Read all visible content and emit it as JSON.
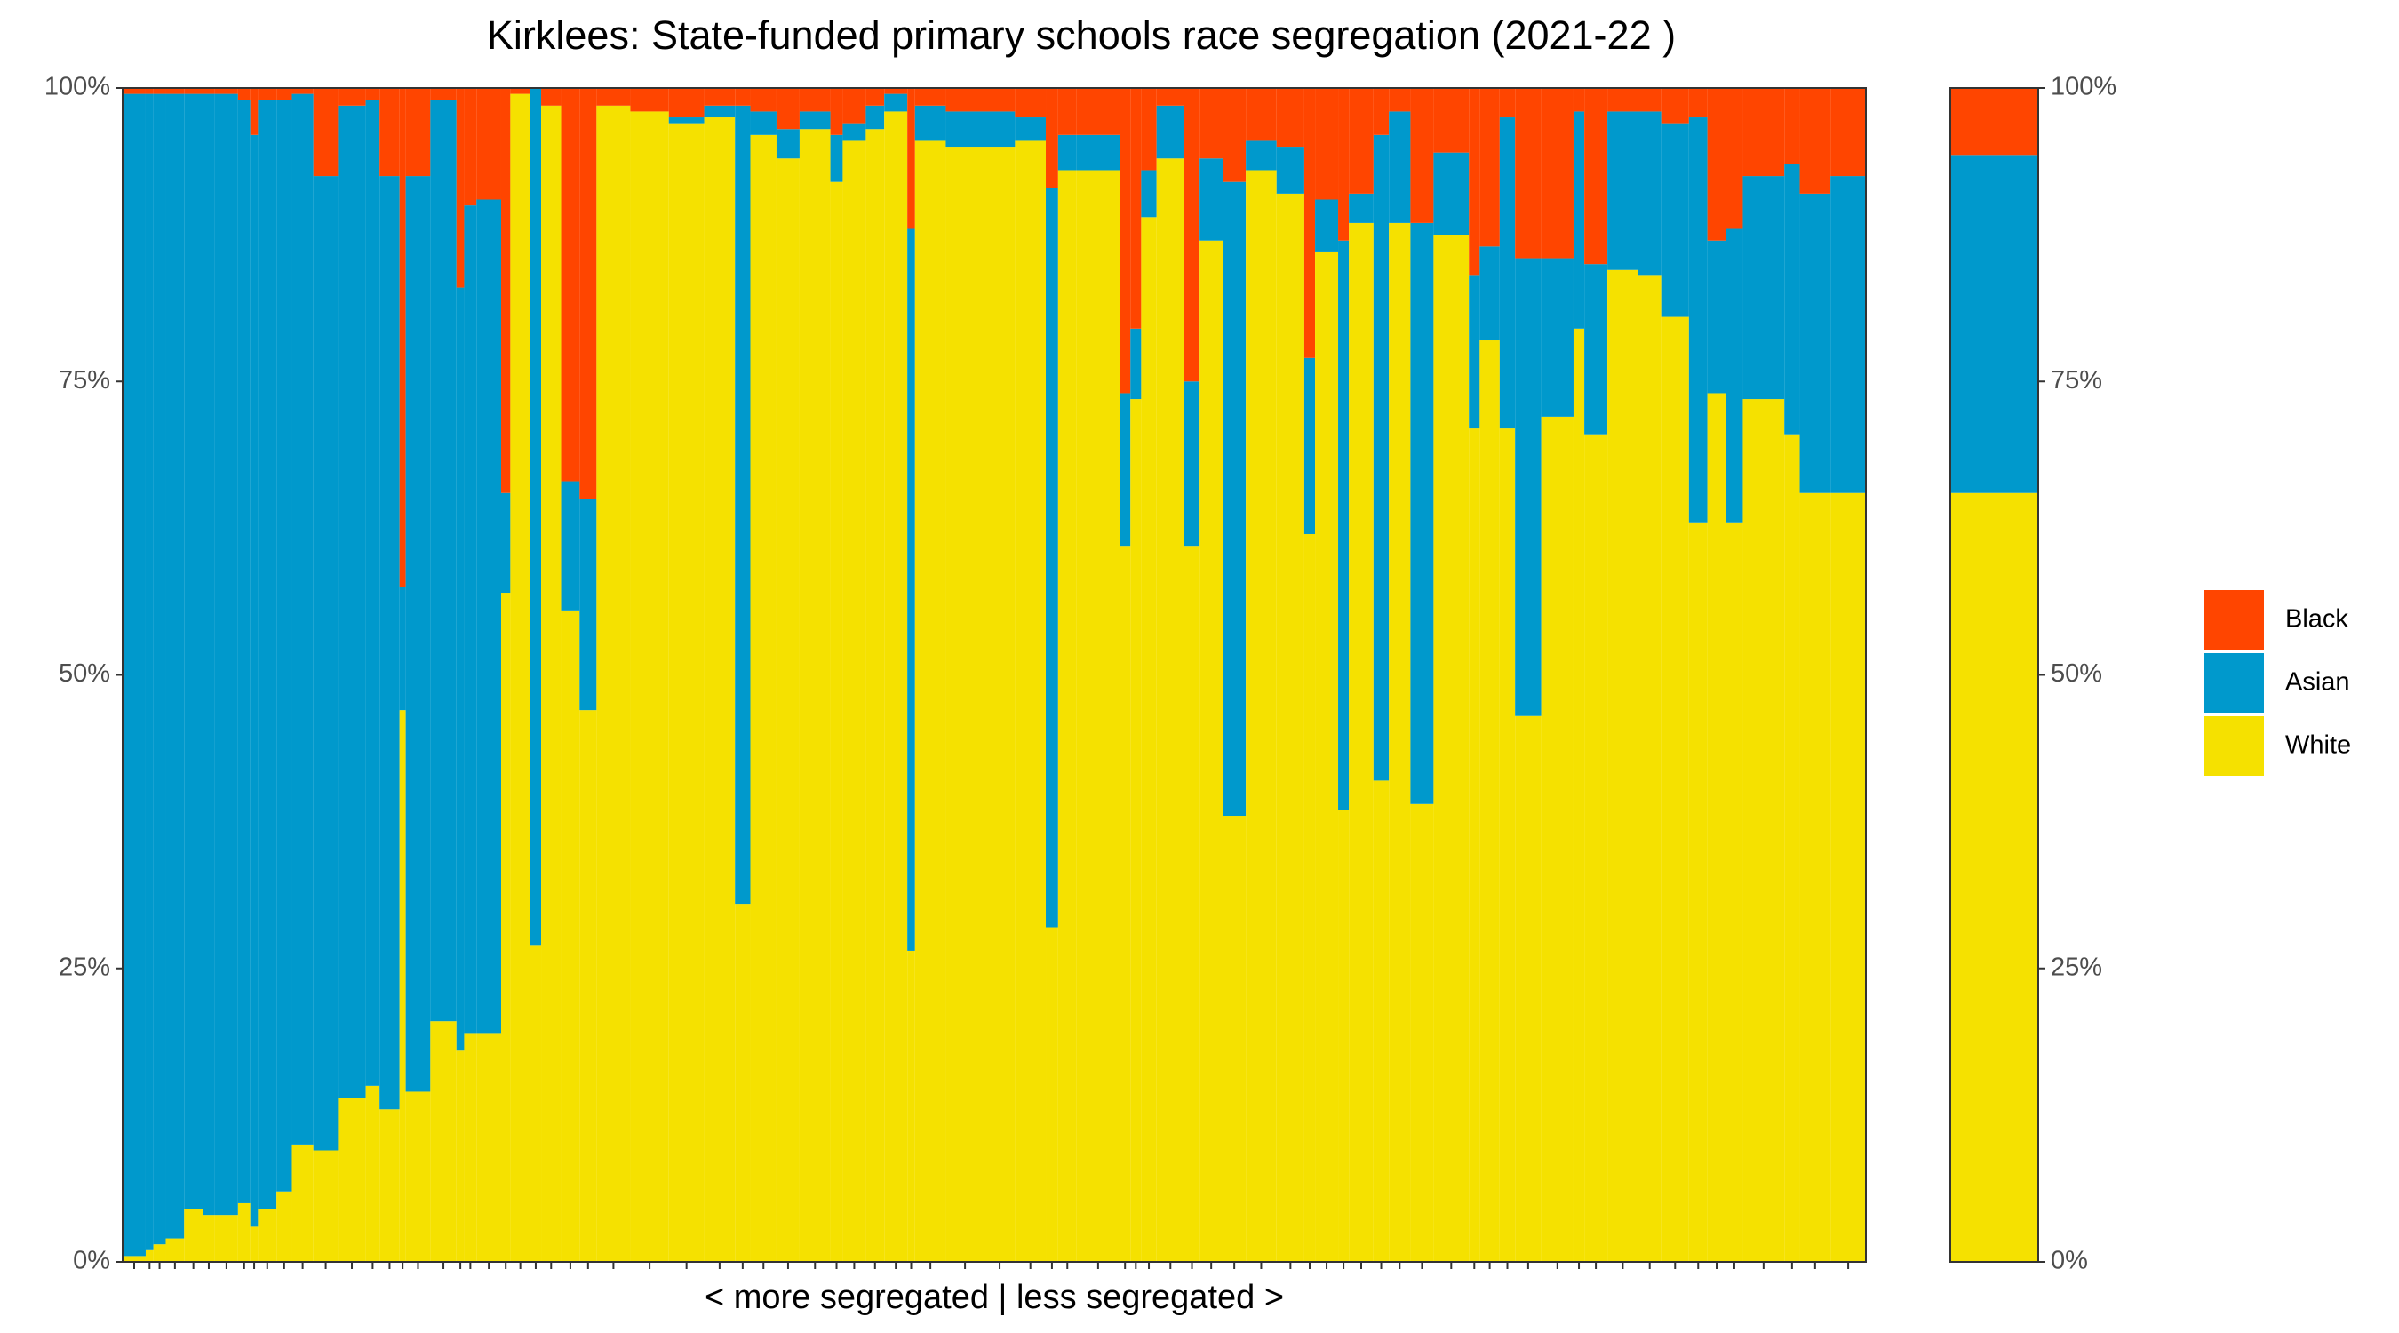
{
  "chart_data": [
    {
      "type": "mekko",
      "title": "Kirklees: State-funded primary schools race segregation (2021-22 )",
      "x_label": "< more segregated | less segregated >",
      "ylim": [
        0,
        100
      ],
      "yticks": [
        {
          "value": 0,
          "label": "0%"
        },
        {
          "value": 25,
          "label": "25%"
        },
        {
          "value": 50,
          "label": "50%"
        },
        {
          "value": 75,
          "label": "75%"
        },
        {
          "value": 100,
          "label": "100%"
        }
      ],
      "widths": [
        15,
        5,
        8,
        12,
        12,
        8,
        15,
        8,
        5,
        12,
        10,
        14,
        16,
        18,
        9,
        13,
        4,
        16,
        17,
        5,
        8,
        16,
        6,
        13,
        7,
        13,
        12,
        11,
        22,
        25,
        23,
        20,
        10,
        17,
        15,
        20,
        8,
        15,
        12,
        15,
        5,
        20,
        25,
        20,
        20,
        8,
        12,
        28,
        7,
        7,
        10,
        18,
        10,
        15,
        15,
        20,
        18,
        7,
        15,
        7,
        16,
        10,
        14,
        15,
        23,
        7,
        13,
        10,
        17,
        21,
        7,
        15,
        20,
        15,
        18,
        12,
        12,
        11,
        27,
        10,
        20,
        23
      ],
      "series": [
        {
          "name": "Black",
          "color": "#ff4500",
          "values": [
            0.5,
            0.5,
            0.5,
            0.5,
            0.5,
            0.5,
            0.5,
            1,
            4,
            1,
            1,
            0.5,
            7.5,
            1.5,
            1,
            7.5,
            42.5,
            7.5,
            1,
            17,
            10,
            9.5,
            34.5,
            0.5,
            0,
            1.5,
            33.5,
            35,
            1.5,
            2,
            2.5,
            1.5,
            1.5,
            2,
            3.5,
            2,
            4,
            3,
            1.5,
            0.5,
            12,
            1.5,
            2,
            2,
            2.5,
            8.5,
            4,
            4,
            26,
            20.5,
            7,
            1.5,
            25,
            6,
            8,
            4.5,
            5,
            23,
            9.5,
            13,
            9,
            4,
            2,
            11.5,
            5.5,
            16,
            13.5,
            2.5,
            14.5,
            14.5,
            2,
            15,
            2,
            2,
            3,
            2.5,
            13,
            12,
            7.5,
            6.5,
            9,
            7.5
          ]
        },
        {
          "name": "Asian",
          "color": "#0099cc",
          "values": [
            99,
            98.5,
            98,
            97.5,
            95,
            95.5,
            95.5,
            94,
            93,
            94.5,
            93,
            89.5,
            83,
            84.5,
            84,
            79.5,
            10.5,
            78,
            78.5,
            65,
            70.5,
            71,
            8.5,
            0,
            73,
            0,
            11,
            18,
            0,
            0,
            0.5,
            1,
            68,
            2,
            2.5,
            1.5,
            4,
            1.5,
            2,
            1.5,
            61.5,
            3,
            3,
            3,
            2,
            63,
            3,
            3,
            13,
            6,
            4,
            4.5,
            14,
            7,
            54,
            2.5,
            4,
            15,
            4.5,
            48.5,
            2.5,
            55,
            9.5,
            49.5,
            7,
            13,
            8,
            26.5,
            39,
            13.5,
            18.5,
            14.5,
            13.5,
            14,
            16.5,
            34.5,
            13,
            25,
            19,
            23,
            25.5,
            27
          ]
        },
        {
          "name": "White",
          "color": "#f5e100",
          "values": [
            0.5,
            1,
            1.5,
            2,
            4.5,
            4,
            4,
            5,
            3,
            4.5,
            6,
            10,
            9.5,
            14,
            15,
            13,
            47,
            14.5,
            20.5,
            18,
            19.5,
            19.5,
            57,
            99.5,
            27,
            98.5,
            55.5,
            47,
            98.5,
            98,
            97,
            97.5,
            30.5,
            96,
            94,
            96.5,
            92,
            95.5,
            96.5,
            98,
            26.5,
            95.5,
            95,
            95,
            95.5,
            28.5,
            93,
            93,
            61,
            73.5,
            89,
            94,
            61,
            87,
            38,
            93,
            91,
            62,
            86,
            38.5,
            88.5,
            41,
            88.5,
            39,
            87.5,
            71,
            78.5,
            71,
            46.5,
            72,
            79.5,
            70.5,
            84.5,
            84,
            80.5,
            63,
            74,
            63,
            73.5,
            70.5,
            65.5,
            65.5
          ]
        }
      ]
    },
    {
      "type": "stacked-bar",
      "ylim": [
        0,
        100
      ],
      "yticks": [
        {
          "value": 0,
          "label": "0%"
        },
        {
          "value": 25,
          "label": "25%"
        },
        {
          "value": 50,
          "label": "50%"
        },
        {
          "value": 75,
          "label": "75%"
        },
        {
          "value": 100,
          "label": "100%"
        }
      ],
      "series": [
        {
          "name": "Black",
          "color": "#ff4500",
          "values": [
            5.7
          ]
        },
        {
          "name": "Asian",
          "color": "#0099cc",
          "values": [
            28.8
          ]
        },
        {
          "name": "White",
          "color": "#f5e100",
          "values": [
            65.5
          ]
        }
      ]
    }
  ]
}
